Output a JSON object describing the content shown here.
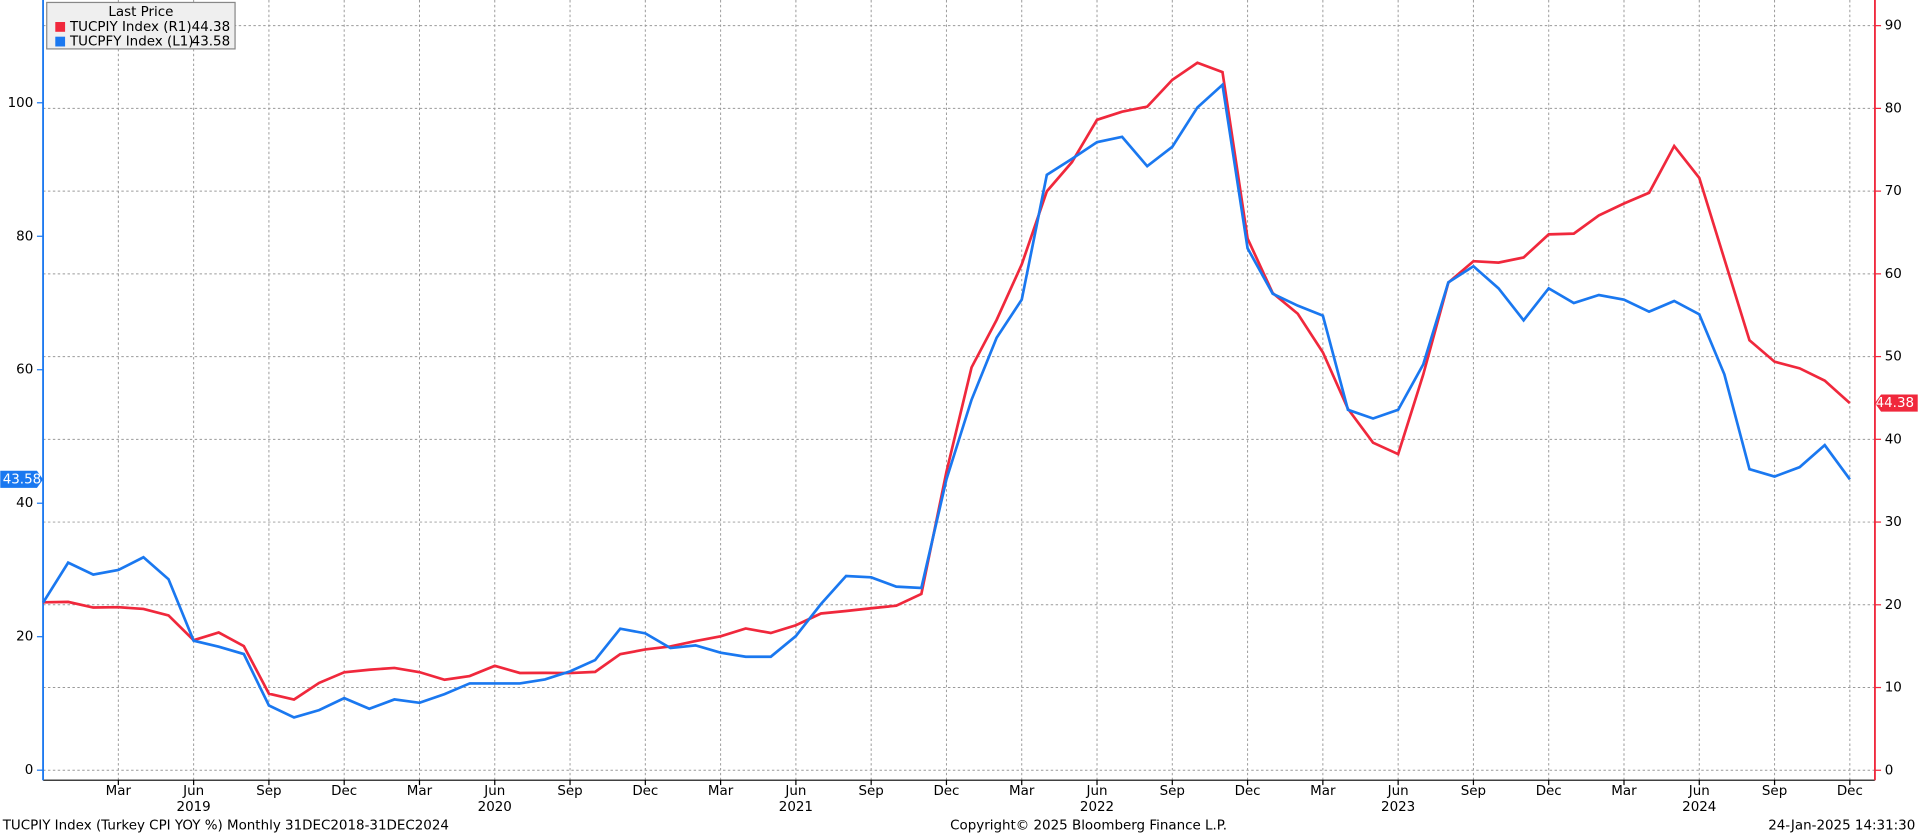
{
  "chart_data": {
    "type": "line",
    "legend_title": "Last Price",
    "footer_left": "TUCPIY Index (Turkey CPI YOY %)  Monthly 31DEC2018-31DEC2024",
    "footer_center": "Copyright© 2025 Bloomberg Finance L.P.",
    "footer_right": "24-Jan-2025 14:31:30",
    "grid": true,
    "legend_position": "top-left",
    "x": [
      "2018-12",
      "2019-01",
      "2019-02",
      "2019-03",
      "2019-04",
      "2019-05",
      "2019-06",
      "2019-07",
      "2019-08",
      "2019-09",
      "2019-10",
      "2019-11",
      "2019-12",
      "2020-01",
      "2020-02",
      "2020-03",
      "2020-04",
      "2020-05",
      "2020-06",
      "2020-07",
      "2020-08",
      "2020-09",
      "2020-10",
      "2020-11",
      "2020-12",
      "2021-01",
      "2021-02",
      "2021-03",
      "2021-04",
      "2021-05",
      "2021-06",
      "2021-07",
      "2021-08",
      "2021-09",
      "2021-10",
      "2021-11",
      "2021-12",
      "2022-01",
      "2022-02",
      "2022-03",
      "2022-04",
      "2022-05",
      "2022-06",
      "2022-07",
      "2022-08",
      "2022-09",
      "2022-10",
      "2022-11",
      "2022-12",
      "2023-01",
      "2023-02",
      "2023-03",
      "2023-04",
      "2023-05",
      "2023-06",
      "2023-07",
      "2023-08",
      "2023-09",
      "2023-10",
      "2023-11",
      "2023-12",
      "2024-01",
      "2024-02",
      "2024-03",
      "2024-04",
      "2024-05",
      "2024-06",
      "2024-07",
      "2024-08",
      "2024-09",
      "2024-10",
      "2024-11",
      "2024-12"
    ],
    "xlim": [
      "2018-12",
      "2025-01"
    ],
    "xticks": [
      {
        "value": "2019-03",
        "label": "Mar"
      },
      {
        "value": "2019-06",
        "label": "Jun"
      },
      {
        "value": "2019-09",
        "label": "Sep"
      },
      {
        "value": "2019-12",
        "label": "Dec"
      },
      {
        "value": "2020-03",
        "label": "Mar"
      },
      {
        "value": "2020-06",
        "label": "Jun"
      },
      {
        "value": "2020-09",
        "label": "Sep"
      },
      {
        "value": "2020-12",
        "label": "Dec"
      },
      {
        "value": "2021-03",
        "label": "Mar"
      },
      {
        "value": "2021-06",
        "label": "Jun"
      },
      {
        "value": "2021-09",
        "label": "Sep"
      },
      {
        "value": "2021-12",
        "label": "Dec"
      },
      {
        "value": "2022-03",
        "label": "Mar"
      },
      {
        "value": "2022-06",
        "label": "Jun"
      },
      {
        "value": "2022-09",
        "label": "Sep"
      },
      {
        "value": "2022-12",
        "label": "Dec"
      },
      {
        "value": "2023-03",
        "label": "Mar"
      },
      {
        "value": "2023-06",
        "label": "Jun"
      },
      {
        "value": "2023-09",
        "label": "Sep"
      },
      {
        "value": "2023-12",
        "label": "Dec"
      },
      {
        "value": "2024-03",
        "label": "Mar"
      },
      {
        "value": "2024-06",
        "label": "Jun"
      },
      {
        "value": "2024-09",
        "label": "Sep"
      },
      {
        "value": "2024-12",
        "label": "Dec"
      }
    ],
    "year_labels": [
      {
        "value": "2019-06",
        "label": "2019"
      },
      {
        "value": "2020-06",
        "label": "2020"
      },
      {
        "value": "2021-06",
        "label": "2021"
      },
      {
        "value": "2022-06",
        "label": "2022"
      },
      {
        "value": "2023-06",
        "label": "2023"
      },
      {
        "value": "2024-06",
        "label": "2024"
      }
    ],
    "ylim": [
      -1.5,
      115.4
    ],
    "yticks": [
      0,
      20,
      40,
      60,
      80,
      100
    ],
    "y2lim": [
      -1.2,
      93.1
    ],
    "y2ticks": [
      0,
      10,
      20,
      30,
      40,
      50,
      60,
      70,
      80,
      90
    ],
    "series": [
      {
        "name": "TUCPIY Index  (R1)",
        "color": "#f0283c",
        "axis": "y2",
        "values": [
          20.3,
          20.35,
          19.67,
          19.71,
          19.5,
          18.71,
          15.72,
          16.65,
          15.01,
          9.26,
          8.55,
          10.56,
          11.84,
          12.15,
          12.37,
          11.86,
          10.94,
          11.39,
          12.62,
          11.76,
          11.77,
          11.75,
          11.89,
          14.03,
          14.6,
          14.97,
          15.61,
          16.19,
          17.14,
          16.59,
          17.53,
          18.95,
          19.25,
          19.58,
          19.89,
          21.31,
          36.08,
          48.69,
          54.44,
          61.14,
          69.97,
          73.5,
          78.62,
          79.6,
          80.21,
          83.45,
          85.51,
          84.39,
          64.27,
          57.68,
          55.18,
          50.51,
          43.68,
          39.59,
          38.21,
          47.83,
          58.94,
          61.53,
          61.36,
          61.98,
          64.77,
          64.86,
          67.07,
          68.5,
          69.8,
          75.45,
          71.6,
          61.78,
          51.97,
          49.38,
          48.58,
          47.09,
          44.38
        ]
      },
      {
        "name": "TUCPFY Index  (L1)",
        "color": "#1a78f0",
        "values": [
          25.1,
          31.1,
          29.3,
          30.0,
          31.9,
          28.6,
          19.4,
          18.5,
          17.4,
          9.7,
          7.9,
          9.0,
          10.8,
          9.2,
          10.6,
          10.1,
          11.4,
          13.0,
          13.0,
          13.0,
          13.6,
          14.8,
          16.5,
          21.2,
          20.5,
          18.3,
          18.7,
          17.6,
          17.0,
          17.0,
          20.1,
          24.9,
          29.1,
          28.9,
          27.5,
          27.3,
          43.6,
          55.5,
          64.8,
          70.5,
          89.2,
          91.6,
          94.1,
          94.9,
          90.5,
          93.4,
          99.3,
          102.7,
          78.2,
          71.4,
          69.6,
          68.1,
          54.0,
          52.7,
          54.0,
          60.8,
          73.1,
          75.5,
          72.2,
          67.4,
          72.2,
          70.0,
          71.2,
          70.5,
          68.7,
          70.3,
          68.3,
          59.3,
          45.1,
          44.0,
          45.4,
          48.7,
          43.58
        ]
      }
    ]
  }
}
